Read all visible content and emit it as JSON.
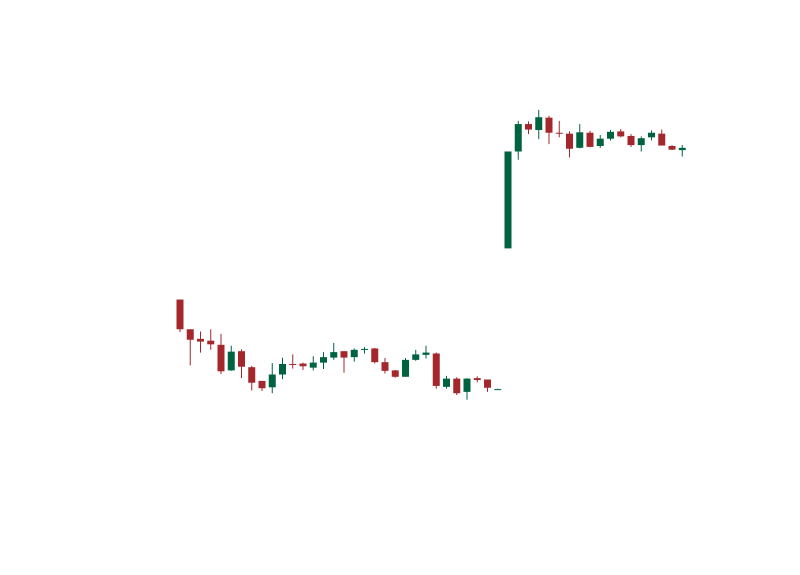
{
  "chart_data": {
    "type": "candlestick",
    "title": "",
    "xlabel": "",
    "ylabel": "",
    "axes_visible": false,
    "grid": false,
    "legend": "none",
    "ylim": [
      0,
      100
    ],
    "colors": {
      "up": "#006340",
      "down": "#A3272B"
    },
    "candles": [
      {
        "i": 0,
        "open": 47.8,
        "high": 47.8,
        "low": 40.7,
        "close": 41.3
      },
      {
        "i": 1,
        "open": 41.3,
        "high": 41.3,
        "low": 33.4,
        "close": 39.0
      },
      {
        "i": 2,
        "open": 39.2,
        "high": 40.8,
        "low": 36.2,
        "close": 38.6
      },
      {
        "i": 3,
        "open": 38.8,
        "high": 41.3,
        "low": 36.8,
        "close": 38.0
      },
      {
        "i": 4,
        "open": 37.9,
        "high": 40.3,
        "low": 31.5,
        "close": 32.1
      },
      {
        "i": 5,
        "open": 32.3,
        "high": 37.7,
        "low": 32.2,
        "close": 36.4
      },
      {
        "i": 6,
        "open": 36.5,
        "high": 36.9,
        "low": 30.6,
        "close": 33.1
      },
      {
        "i": 7,
        "open": 33.0,
        "high": 33.3,
        "low": 27.9,
        "close": 29.6
      },
      {
        "i": 8,
        "open": 30.0,
        "high": 30.0,
        "low": 27.8,
        "close": 28.4
      },
      {
        "i": 9,
        "open": 28.6,
        "high": 33.9,
        "low": 27.3,
        "close": 31.4
      },
      {
        "i": 10,
        "open": 31.4,
        "high": 35.1,
        "low": 30.4,
        "close": 33.7
      },
      {
        "i": 11,
        "open": 33.7,
        "high": 35.8,
        "low": 32.7,
        "close": 33.6
      },
      {
        "i": 12,
        "open": 33.8,
        "high": 34.0,
        "low": 32.4,
        "close": 33.2
      },
      {
        "i": 13,
        "open": 32.9,
        "high": 35.4,
        "low": 32.3,
        "close": 34.0
      },
      {
        "i": 14,
        "open": 34.0,
        "high": 36.3,
        "low": 32.6,
        "close": 35.2
      },
      {
        "i": 15,
        "open": 35.1,
        "high": 38.3,
        "low": 34.6,
        "close": 36.3
      },
      {
        "i": 16,
        "open": 36.5,
        "high": 36.5,
        "low": 31.8,
        "close": 35.1
      },
      {
        "i": 17,
        "open": 35.2,
        "high": 37.1,
        "low": 34.2,
        "close": 36.8
      },
      {
        "i": 18,
        "open": 36.8,
        "high": 37.4,
        "low": 36.0,
        "close": 37.0
      },
      {
        "i": 19,
        "open": 37.1,
        "high": 37.2,
        "low": 33.8,
        "close": 34.1
      },
      {
        "i": 20,
        "open": 34.1,
        "high": 35.0,
        "low": 31.6,
        "close": 32.2
      },
      {
        "i": 21,
        "open": 32.3,
        "high": 32.4,
        "low": 30.7,
        "close": 30.9
      },
      {
        "i": 22,
        "open": 30.9,
        "high": 35.0,
        "low": 30.9,
        "close": 34.6
      },
      {
        "i": 23,
        "open": 34.6,
        "high": 36.8,
        "low": 34.4,
        "close": 35.8
      },
      {
        "i": 24,
        "open": 35.7,
        "high": 37.7,
        "low": 34.9,
        "close": 36.2
      },
      {
        "i": 25,
        "open": 36.0,
        "high": 36.2,
        "low": 28.3,
        "close": 28.9
      },
      {
        "i": 26,
        "open": 28.7,
        "high": 31.1,
        "low": 28.3,
        "close": 30.5
      },
      {
        "i": 27,
        "open": 30.5,
        "high": 30.8,
        "low": 26.9,
        "close": 27.3
      },
      {
        "i": 28,
        "open": 27.6,
        "high": 30.6,
        "low": 25.9,
        "close": 30.5
      },
      {
        "i": 29,
        "open": 30.6,
        "high": 31.0,
        "low": 29.7,
        "close": 30.2
      },
      {
        "i": 30,
        "open": 30.3,
        "high": 30.3,
        "low": 27.6,
        "close": 28.5
      },
      {
        "i": 31,
        "open": 28.2,
        "high": 28.3,
        "low": 28.0,
        "close": 28.2
      },
      {
        "i": 32,
        "open": 59.0,
        "high": 80.2,
        "low": 59.0,
        "close": 80.2
      },
      {
        "i": 33,
        "open": 80.2,
        "high": 86.9,
        "low": 78.4,
        "close": 86.2
      },
      {
        "i": 34,
        "open": 86.2,
        "high": 86.8,
        "low": 84.0,
        "close": 85.0
      },
      {
        "i": 35,
        "open": 84.9,
        "high": 89.3,
        "low": 82.9,
        "close": 87.7
      },
      {
        "i": 36,
        "open": 87.6,
        "high": 88.0,
        "low": 81.8,
        "close": 84.3
      },
      {
        "i": 37,
        "open": 84.3,
        "high": 86.9,
        "low": 83.3,
        "close": 84.1
      },
      {
        "i": 38,
        "open": 84.1,
        "high": 84.6,
        "low": 78.9,
        "close": 80.8
      },
      {
        "i": 39,
        "open": 81.0,
        "high": 86.2,
        "low": 80.9,
        "close": 84.4
      },
      {
        "i": 40,
        "open": 84.3,
        "high": 84.7,
        "low": 81.1,
        "close": 81.2
      },
      {
        "i": 41,
        "open": 81.4,
        "high": 83.8,
        "low": 81.0,
        "close": 83.0
      },
      {
        "i": 42,
        "open": 83.0,
        "high": 84.9,
        "low": 82.6,
        "close": 84.5
      },
      {
        "i": 43,
        "open": 84.6,
        "high": 85.1,
        "low": 83.3,
        "close": 83.5
      },
      {
        "i": 44,
        "open": 83.6,
        "high": 84.0,
        "low": 81.2,
        "close": 81.6
      },
      {
        "i": 45,
        "open": 81.6,
        "high": 83.5,
        "low": 80.2,
        "close": 83.1
      },
      {
        "i": 46,
        "open": 83.3,
        "high": 84.8,
        "low": 82.6,
        "close": 84.3
      },
      {
        "i": 47,
        "open": 84.1,
        "high": 85.0,
        "low": 81.5,
        "close": 81.5
      },
      {
        "i": 48,
        "open": 81.4,
        "high": 81.6,
        "low": 80.5,
        "close": 80.6
      },
      {
        "i": 49,
        "open": 80.5,
        "high": 81.6,
        "low": 79.1,
        "close": 81.0
      }
    ]
  }
}
